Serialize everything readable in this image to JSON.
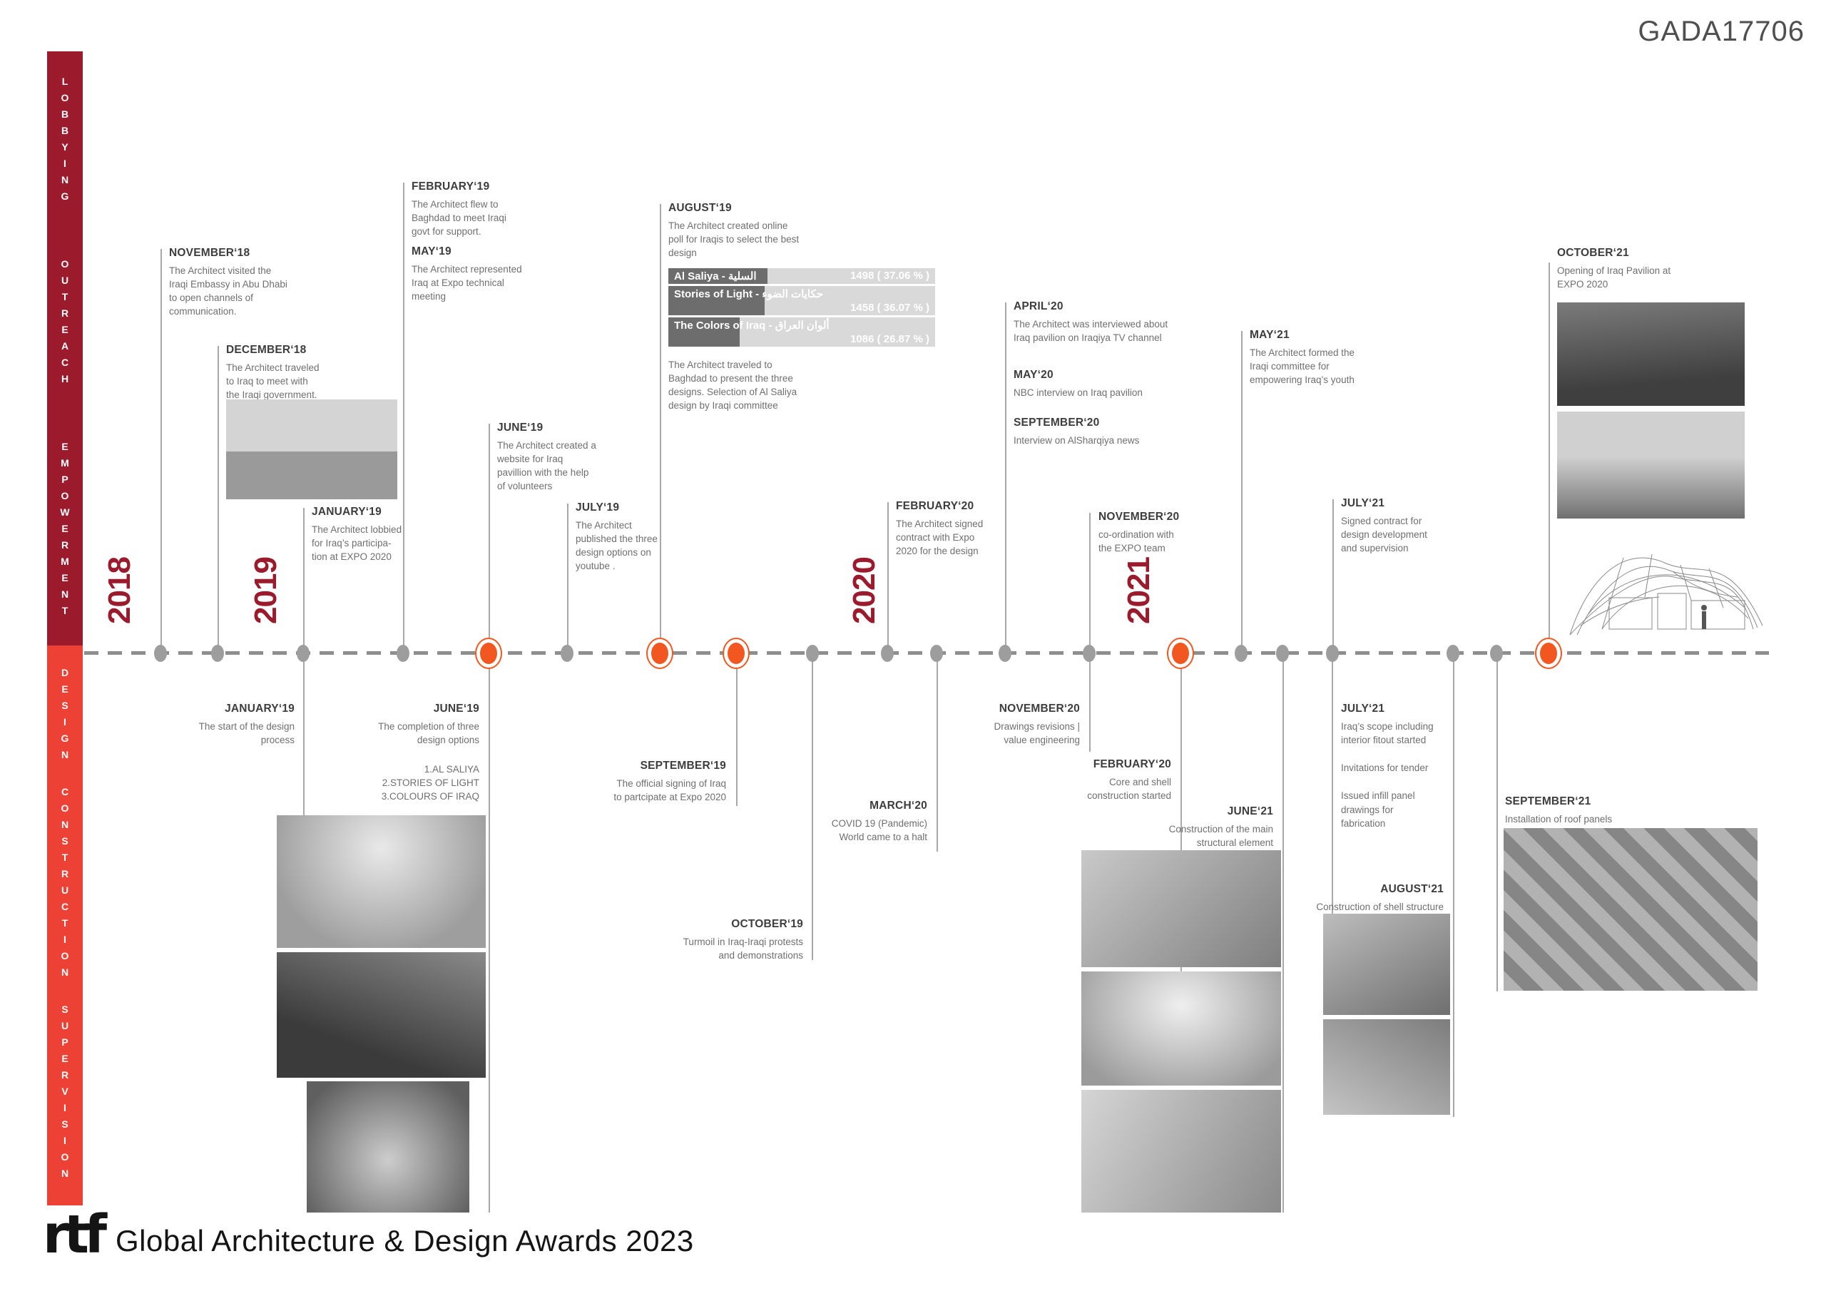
{
  "header": {
    "code": "GADA17706"
  },
  "sidebar": {
    "top": [
      "LOBBYING",
      "OUTREACH",
      "EMPOWERMENT"
    ],
    "bottom": [
      "DESIGN",
      "CONSTRUCTION",
      "SUPERVISION"
    ]
  },
  "timeline": {
    "years": [
      "2018",
      "2019",
      "2020",
      "2021"
    ]
  },
  "events": {
    "nov18": {
      "title": "NOVEMBER‘18",
      "body": "The Architect visited the\nIraqi Embassy in Abu Dhabi\nto open channels of\ncommunication."
    },
    "dec18": {
      "title": "DECEMBER‘18",
      "body": "The Architect traveled\nto Iraq to meet with\nthe Iraqi government."
    },
    "jan19_top": {
      "title": "JANUARY‘19",
      "body": "The Architect lobbied\nfor Iraq’s participa-\ntion at EXPO 2020"
    },
    "feb19": {
      "title": "FEBRUARY‘19",
      "body": "The Architect flew to\nBaghdad to meet Iraqi\ngovt for support."
    },
    "may19": {
      "title": "MAY‘19",
      "body": "The Architect represented\nIraq at Expo technical\nmeeting"
    },
    "jun19_top": {
      "title": "JUNE‘19",
      "body": "The Architect created a\nwebsite for Iraq\npavillion with the help\nof volunteers"
    },
    "jul19_top": {
      "title": "JULY‘19",
      "body": "The Architect\npublished the three\ndesign options on\nyoutube ."
    },
    "aug19": {
      "title": "AUGUST‘19",
      "body": "The Architect created online\npoll for Iraqis to select the best\ndesign",
      "body2": "The Architect traveled to\nBaghdad to present the three\ndesigns. Selection of Al Saliya\ndesign by Iraqi committee"
    },
    "feb20_top": {
      "title": "FEBRUARY‘20",
      "body": "The Architect signed\ncontract with Expo\n2020 for the design"
    },
    "apr20": {
      "title": "APRIL‘20",
      "body": "The Architect was interviewed about\nIraq pavilion on Iraqiya TV channel"
    },
    "may20": {
      "title": "MAY‘20",
      "body": "NBC interview on Iraq pavilion"
    },
    "sep20": {
      "title": "SEPTEMBER‘20",
      "body": "Interview on AlSharqiya news"
    },
    "nov20_top": {
      "title": "NOVEMBER‘20",
      "body": "co-ordination with\nthe EXPO team"
    },
    "may21": {
      "title": "MAY‘21",
      "body": "The Architect formed the\nIraqi committee for\nempowering Iraq’s youth"
    },
    "jul21_top": {
      "title": "JULY‘21",
      "body": "Signed contract for\ndesign development\nand supervision"
    },
    "oct21": {
      "title": "OCTOBER‘21",
      "body": "Opening of Iraq Pavilion at\nEXPO 2020"
    },
    "jan19_bottom": {
      "title": "JANUARY‘19",
      "body": "The start of the design\nprocess"
    },
    "jun19_bottom": {
      "title": "JUNE‘19",
      "body": "The completion of three\ndesign options",
      "list": "1.AL SALIYA\n2.STORIES OF LIGHT\n3.COLOURS OF IRAQ"
    },
    "sep19_bottom": {
      "title": "SEPTEMBER‘19",
      "body": "The official signing of Iraq\nto partcipate at Expo 2020"
    },
    "oct19_bottom": {
      "title": "OCTOBER‘19",
      "body": "Turmoil in Iraq-Iraqi protests\nand demonstrations"
    },
    "mar20_bottom": {
      "title": "MARCH‘20",
      "body": "COVID 19 (Pandemic)\nWorld came to a halt"
    },
    "nov20_bottom": {
      "title": "NOVEMBER‘20",
      "body": "Drawings revisions |\nvalue engineering"
    },
    "feb20_bottom": {
      "title": "FEBRUARY‘20",
      "body": "Core and shell\nconstruction started"
    },
    "jun21_bottom": {
      "title": "JUNE‘21",
      "body": "Construction of the main\nstructural element"
    },
    "jul21_bottom": {
      "title": "JULY‘21",
      "body": "Iraq’s scope including\ninterior fitout started",
      "body2": "Invitations for tender",
      "body3": "Issued infill panel\ndrawings for\nfabrication"
    },
    "aug21_bottom": {
      "title": "AUGUST‘21",
      "body": "Construction of shell structure"
    },
    "sep21_bottom": {
      "title": "SEPTEMBER‘21",
      "body": "Installation of roof panels"
    }
  },
  "poll": {
    "rows": [
      {
        "label": "Al Saliya - السلية",
        "value": "1498 ( 37.06 % )",
        "pct": 37.06
      },
      {
        "label": "Stories of Light - حكايات الضوء",
        "value": "1458 ( 36.07 % )",
        "pct": 36.07
      },
      {
        "label": "The Colors of Iraq - ألوان العراق",
        "value": "1086 ( 26.87 % )",
        "pct": 26.87
      }
    ]
  },
  "chart_data": {
    "type": "bar",
    "title": "Online poll for Iraqis to select the best design (August '19)",
    "categories": [
      "Al Saliya - السلية",
      "Stories of Light - حكايات الضوء",
      "The Colors of Iraq - ألوان العراق"
    ],
    "values": [
      1498,
      1458,
      1086
    ],
    "percents": [
      37.06,
      36.07,
      26.87
    ],
    "labels": [
      "1498 ( 37.06 % )",
      "1458 ( 36.07 % )",
      "1086 ( 26.87 % )"
    ],
    "orientation": "horizontal",
    "bar_color": "#6d6d6d",
    "track_color": "#d9d9d9"
  },
  "footer": {
    "logo": "rtf",
    "text": "Global Architecture & Design Awards 2023"
  },
  "colors": {
    "dark_red": "#9B1A2C",
    "bright_red": "#EE4136",
    "orange": "#F1571F"
  }
}
